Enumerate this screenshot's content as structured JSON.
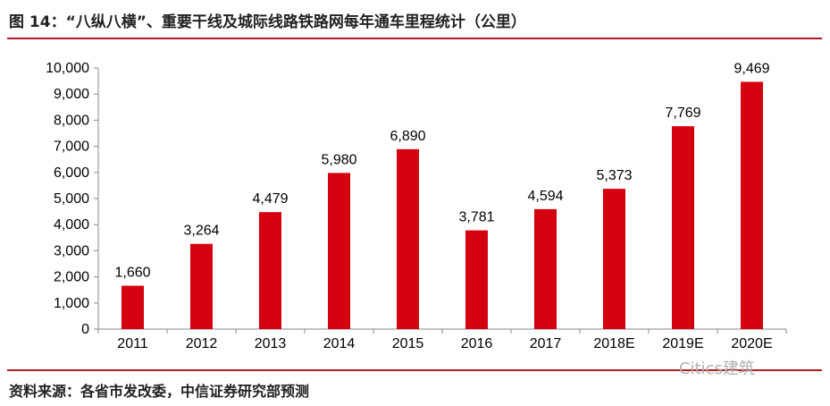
{
  "header": {
    "title": "图 14：“八纵八横”、重要干线及城际线路铁路网每年通车里程统计（公里）"
  },
  "footer": {
    "source": "资料来源：各省市发改委，中信证券研究部预测",
    "watermark": "Citics建筑"
  },
  "chart_data": {
    "type": "bar",
    "title": "“八纵八横”、重要干线及城际线路铁路网每年通车里程统计（公里）",
    "xlabel": "",
    "ylabel": "",
    "categories": [
      "2011",
      "2012",
      "2013",
      "2014",
      "2015",
      "2016",
      "2017",
      "2018E",
      "2019E",
      "2020E"
    ],
    "values": [
      1660,
      3264,
      4479,
      5980,
      6890,
      3781,
      4594,
      5373,
      7769,
      9469
    ],
    "value_labels": [
      "1,660",
      "3,264",
      "4,479",
      "5,980",
      "6,890",
      "3,781",
      "4,594",
      "5,373",
      "7,769",
      "9,469"
    ],
    "ylim": [
      0,
      10000
    ],
    "yticks": [
      0,
      1000,
      2000,
      3000,
      4000,
      5000,
      6000,
      7000,
      8000,
      9000,
      10000
    ],
    "ytick_labels": [
      "0",
      "1,000",
      "2,000",
      "3,000",
      "4,000",
      "5,000",
      "6,000",
      "7,000",
      "8,000",
      "9,000",
      "10,000"
    ],
    "grid": false,
    "legend": "none",
    "bar_color": "#d4000f"
  }
}
